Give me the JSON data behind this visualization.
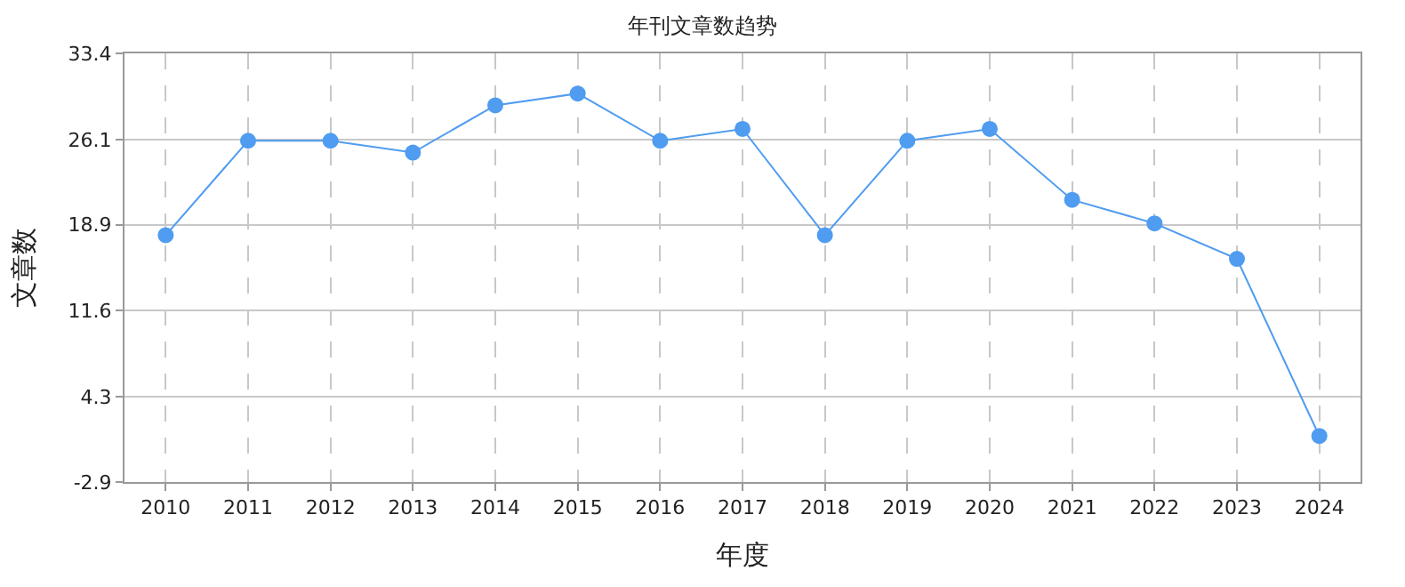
{
  "chart_data": {
    "type": "line",
    "title": "年刊文章数趋势",
    "xlabel": "年度",
    "ylabel": "文章数",
    "categories": [
      "2010",
      "2011",
      "2012",
      "2013",
      "2014",
      "2015",
      "2016",
      "2017",
      "2018",
      "2019",
      "2020",
      "2021",
      "2022",
      "2023",
      "2024"
    ],
    "series": [
      {
        "color": "#4f9cf0",
        "values": [
          18,
          26,
          26,
          25,
          29,
          30,
          26,
          27,
          18,
          26,
          27,
          21,
          19,
          16,
          1
        ]
      }
    ],
    "ylim": [
      -2.9,
      33.4
    ],
    "yticks": [
      -2.9,
      4.3,
      11.6,
      18.9,
      26.1,
      33.4
    ],
    "grid": true,
    "legend": false,
    "marker": "circle",
    "line_style": "solid"
  }
}
